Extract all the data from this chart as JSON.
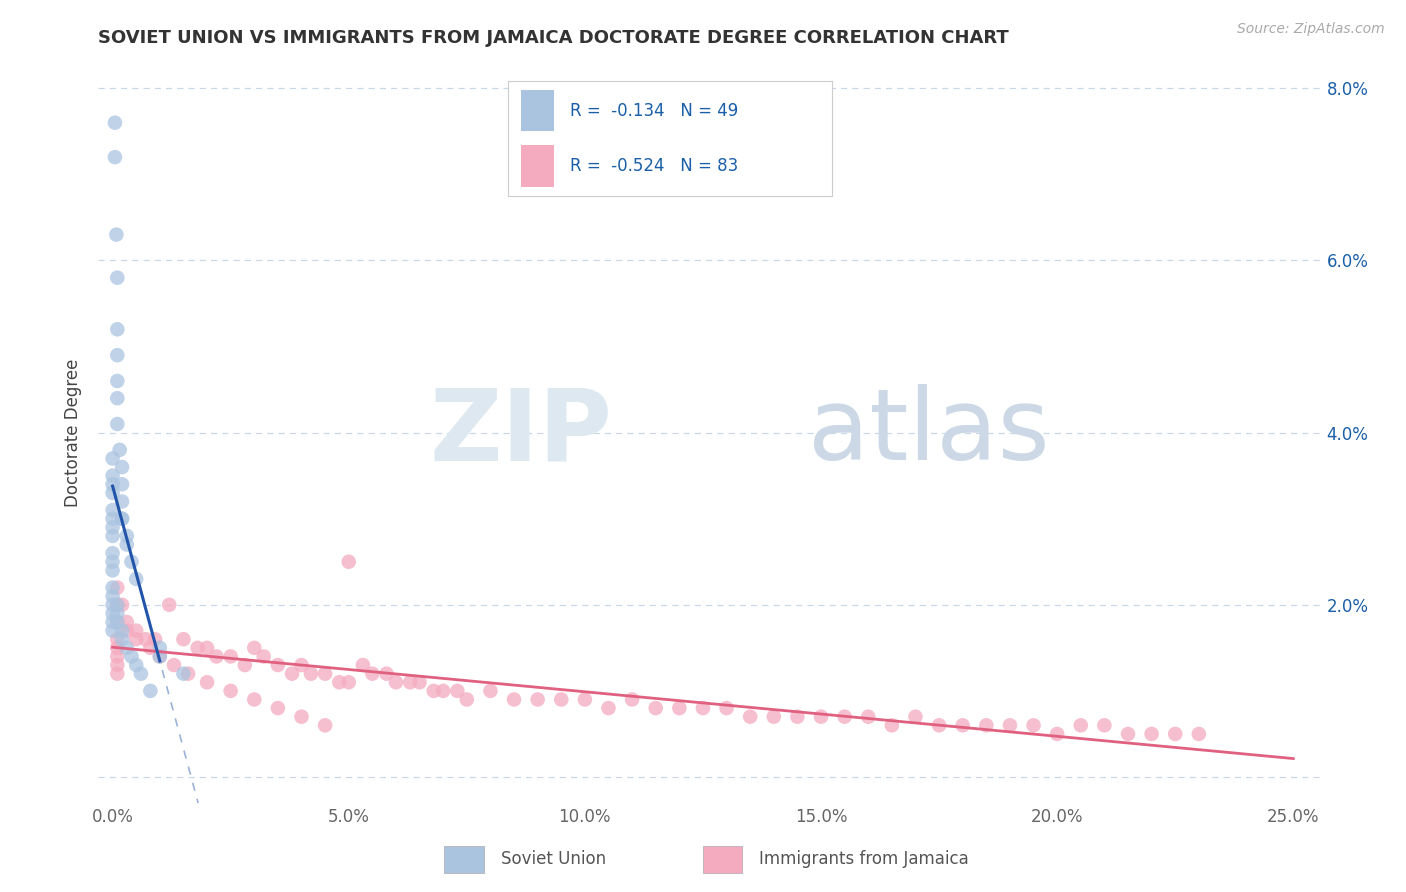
{
  "title": "SOVIET UNION VS IMMIGRANTS FROM JAMAICA DOCTORATE DEGREE CORRELATION CHART",
  "source": "Source: ZipAtlas.com",
  "ylabel": "Doctorate Degree",
  "x_min": 0.0,
  "x_max": 0.25,
  "y_min": 0.0,
  "y_max": 0.08,
  "x_tick_pos": [
    0.0,
    0.05,
    0.1,
    0.15,
    0.2,
    0.25
  ],
  "x_tick_labels": [
    "0.0%",
    "5.0%",
    "10.0%",
    "15.0%",
    "20.0%",
    "25.0%"
  ],
  "y_tick_pos": [
    0.0,
    0.02,
    0.04,
    0.06,
    0.08
  ],
  "y_tick_labels_right": [
    "",
    "2.0%",
    "4.0%",
    "6.0%",
    "8.0%"
  ],
  "legend1_R": "-0.134",
  "legend1_N": "49",
  "legend2_R": "-0.524",
  "legend2_N": "83",
  "blue_color": "#aac4e0",
  "pink_color": "#f4aabf",
  "blue_line_color": "#2255aa",
  "pink_line_color": "#e06080",
  "text_color": "#1a5fa8",
  "grid_color": "#c8d8e8",
  "soviet_x": [
    0.0005,
    0.0005,
    0.0008,
    0.001,
    0.001,
    0.001,
    0.001,
    0.001,
    0.001,
    0.0015,
    0.002,
    0.002,
    0.002,
    0.002,
    0.002,
    0.003,
    0.003,
    0.004,
    0.005,
    0.0,
    0.0,
    0.0,
    0.0,
    0.0,
    0.0,
    0.0,
    0.0,
    0.0,
    0.0,
    0.0,
    0.0,
    0.0,
    0.0,
    0.0,
    0.0,
    0.0,
    0.001,
    0.001,
    0.001,
    0.002,
    0.002,
    0.003,
    0.004,
    0.005,
    0.006,
    0.008,
    0.01,
    0.01,
    0.015
  ],
  "soviet_y": [
    0.076,
    0.072,
    0.063,
    0.058,
    0.052,
    0.049,
    0.046,
    0.044,
    0.041,
    0.038,
    0.036,
    0.034,
    0.032,
    0.03,
    0.03,
    0.028,
    0.027,
    0.025,
    0.023,
    0.037,
    0.035,
    0.034,
    0.033,
    0.031,
    0.03,
    0.029,
    0.028,
    0.026,
    0.025,
    0.024,
    0.022,
    0.021,
    0.02,
    0.019,
    0.018,
    0.017,
    0.02,
    0.019,
    0.018,
    0.017,
    0.016,
    0.015,
    0.014,
    0.013,
    0.012,
    0.01,
    0.015,
    0.014,
    0.012
  ],
  "jamaica_x": [
    0.001,
    0.001,
    0.001,
    0.001,
    0.001,
    0.001,
    0.001,
    0.001,
    0.002,
    0.003,
    0.005,
    0.007,
    0.009,
    0.012,
    0.015,
    0.018,
    0.02,
    0.022,
    0.025,
    0.028,
    0.03,
    0.032,
    0.035,
    0.038,
    0.04,
    0.042,
    0.045,
    0.048,
    0.05,
    0.053,
    0.055,
    0.058,
    0.06,
    0.063,
    0.065,
    0.068,
    0.07,
    0.073,
    0.075,
    0.08,
    0.085,
    0.09,
    0.095,
    0.1,
    0.105,
    0.11,
    0.115,
    0.12,
    0.125,
    0.13,
    0.135,
    0.14,
    0.145,
    0.15,
    0.155,
    0.16,
    0.165,
    0.17,
    0.175,
    0.18,
    0.185,
    0.19,
    0.195,
    0.2,
    0.205,
    0.21,
    0.215,
    0.22,
    0.225,
    0.23,
    0.003,
    0.005,
    0.008,
    0.01,
    0.013,
    0.016,
    0.02,
    0.025,
    0.03,
    0.035,
    0.04,
    0.045,
    0.05
  ],
  "jamaica_y": [
    0.022,
    0.02,
    0.018,
    0.016,
    0.015,
    0.014,
    0.013,
    0.012,
    0.02,
    0.018,
    0.017,
    0.016,
    0.016,
    0.02,
    0.016,
    0.015,
    0.015,
    0.014,
    0.014,
    0.013,
    0.015,
    0.014,
    0.013,
    0.012,
    0.013,
    0.012,
    0.012,
    0.011,
    0.011,
    0.013,
    0.012,
    0.012,
    0.011,
    0.011,
    0.011,
    0.01,
    0.01,
    0.01,
    0.009,
    0.01,
    0.009,
    0.009,
    0.009,
    0.009,
    0.008,
    0.009,
    0.008,
    0.008,
    0.008,
    0.008,
    0.007,
    0.007,
    0.007,
    0.007,
    0.007,
    0.007,
    0.006,
    0.007,
    0.006,
    0.006,
    0.006,
    0.006,
    0.006,
    0.005,
    0.006,
    0.006,
    0.005,
    0.005,
    0.005,
    0.005,
    0.017,
    0.016,
    0.015,
    0.014,
    0.013,
    0.012,
    0.011,
    0.01,
    0.009,
    0.008,
    0.007,
    0.006,
    0.025
  ]
}
